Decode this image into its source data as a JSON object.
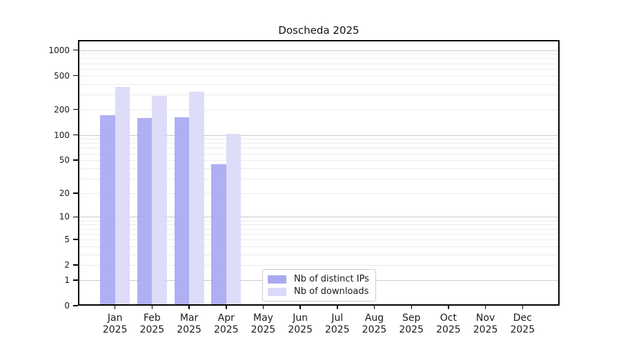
{
  "chart_data": {
    "type": "bar",
    "title": "Doscheda 2025",
    "categories": [
      "Jan",
      "Feb",
      "Mar",
      "Apr",
      "May",
      "Jun",
      "Jul",
      "Aug",
      "Sep",
      "Oct",
      "Nov",
      "Dec"
    ],
    "category_year": "2025",
    "series": [
      {
        "name": "Nb of distinct IPs",
        "color": "#a9a9f2",
        "values": [
          170,
          159,
          163,
          45,
          0,
          0,
          0,
          0,
          0,
          0,
          0,
          0
        ]
      },
      {
        "name": "Nb of downloads",
        "color": "#dadaf9",
        "values": [
          370,
          288,
          325,
          103,
          0,
          0,
          0,
          0,
          0,
          0,
          0,
          0
        ]
      }
    ],
    "xlabel": "",
    "ylabel": "",
    "yscale": "log1p",
    "ylim": [
      0,
      1310
    ],
    "y_ticks": [
      0,
      1,
      2,
      5,
      10,
      20,
      50,
      100,
      200,
      500,
      1000
    ],
    "grid": "horizontal, minor + major",
    "legend_position": "lower center",
    "colors": {
      "spine": "#000000",
      "grid_major": "#c9c9c9",
      "grid_minor": "#ebebeb",
      "text": "#1a1a1a",
      "background": "#ffffff"
    }
  }
}
